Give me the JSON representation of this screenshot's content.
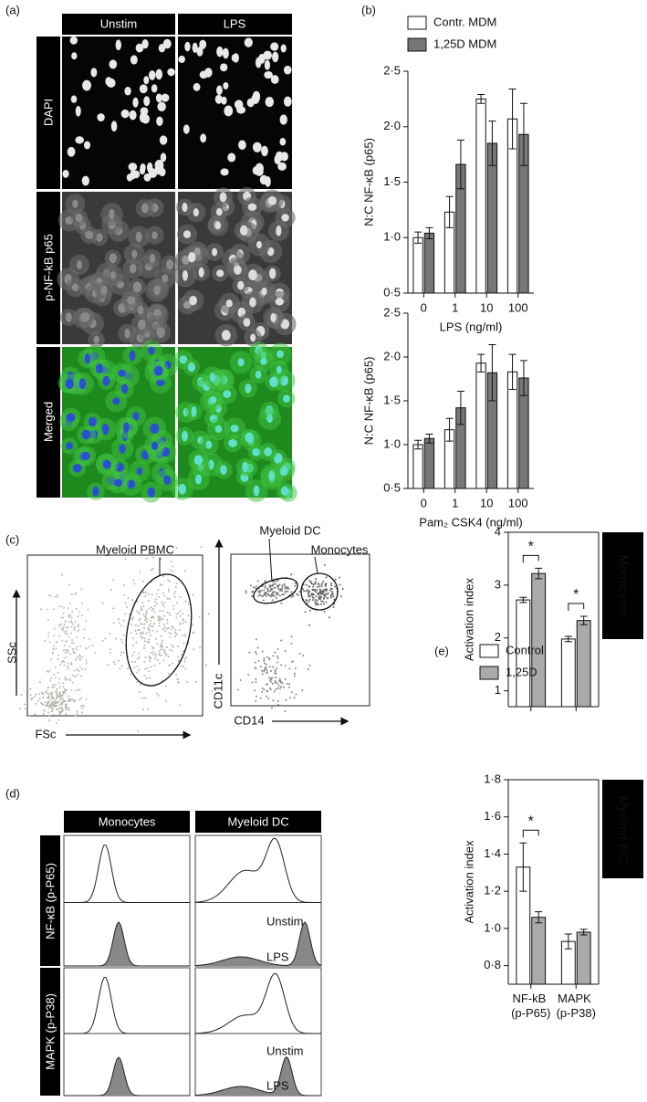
{
  "chart_data": [
    {
      "type": "bar",
      "xlabel": "LPS (ng/ml)",
      "ylabel": "N:C NF-κB (p65)",
      "categories": [
        "0",
        "1",
        "10",
        "100"
      ],
      "series": [
        {
          "name": "Contr. MDM",
          "color": "#ffffff",
          "values": [
            1.0,
            1.23,
            2.25,
            2.07
          ],
          "errors": [
            0.05,
            0.14,
            0.04,
            0.27
          ]
        },
        {
          "name": "1,25D MDM",
          "color": "#777777",
          "values": [
            1.04,
            1.66,
            1.85,
            1.93
          ],
          "errors": [
            0.05,
            0.22,
            0.2,
            0.28
          ]
        }
      ],
      "ylim": [
        0.5,
        2.5
      ],
      "yticks": [
        {
          "value": 0.5,
          "label": "0·5"
        },
        {
          "value": 1.0,
          "label": "1·0"
        },
        {
          "value": 1.5,
          "label": "1·5"
        },
        {
          "value": 2.0,
          "label": "2·0"
        },
        {
          "value": 2.5,
          "label": "2·5"
        }
      ]
    },
    {
      "type": "bar",
      "xlabel": "Pam₂ CSK4 (ng/ml)",
      "ylabel": "N:C NF-κB (p65)",
      "categories": [
        "0",
        "1",
        "10",
        "100"
      ],
      "series": [
        {
          "color": "#ffffff",
          "values": [
            1.0,
            1.17,
            1.93,
            1.83
          ],
          "errors": [
            0.05,
            0.13,
            0.1,
            0.2
          ]
        },
        {
          "color": "#777777",
          "values": [
            1.07,
            1.42,
            1.82,
            1.76
          ],
          "errors": [
            0.05,
            0.19,
            0.32,
            0.2
          ]
        }
      ],
      "ylim": [
        0.5,
        2.5
      ],
      "yticks": [
        {
          "value": 0.5,
          "label": "0·5"
        },
        {
          "value": 1.0,
          "label": "1·0"
        },
        {
          "value": 1.5,
          "label": "1·5"
        },
        {
          "value": 2.0,
          "label": "2·0"
        },
        {
          "value": 2.5,
          "label": "2·5"
        }
      ]
    },
    {
      "type": "bar",
      "ylabel": "Activation index",
      "side_label": "Monocytes",
      "categories": [
        null,
        null
      ],
      "series": [
        {
          "name": "Control",
          "color": "#ffffff",
          "values": [
            2.72,
            1.98
          ],
          "errors": [
            0.05,
            0.05
          ]
        },
        {
          "name": "1,25D",
          "color": "#aaaaaa",
          "values": [
            3.22,
            2.33
          ],
          "errors": [
            0.1,
            0.08
          ]
        }
      ],
      "annotations": [
        "*",
        "*"
      ],
      "ylim": [
        0.7,
        4
      ],
      "yticks": [
        1,
        2,
        3,
        4
      ]
    },
    {
      "type": "bar",
      "ylabel": "Activation index",
      "side_label": "Myeloid DC",
      "categories": [
        "NF-kB (p-P65)",
        "MAPK (p-P38)"
      ],
      "series": [
        {
          "color": "#ffffff",
          "values": [
            1.33,
            0.93
          ],
          "errors": [
            0.13,
            0.04
          ]
        },
        {
          "color": "#aaaaaa",
          "values": [
            1.06,
            0.98
          ],
          "errors": [
            0.03,
            0.015
          ]
        }
      ],
      "annotations": [
        "*"
      ],
      "ylim": [
        0.7,
        1.8
      ],
      "yticks": [
        {
          "value": 0.8,
          "label": "0·8"
        },
        {
          "value": 1.0,
          "label": "1·0"
        },
        {
          "value": 1.2,
          "label": "1·2"
        },
        {
          "value": 1.4,
          "label": "1·4"
        },
        {
          "value": 1.6,
          "label": "1·6"
        },
        {
          "value": 1.8,
          "label": "1·8"
        }
      ]
    }
  ],
  "panels": {
    "letters": [
      "(a)",
      "(b)",
      "(c)",
      "(d)",
      "(e)"
    ],
    "a": {
      "columns": [
        "Unstim",
        "LPS"
      ],
      "rows": [
        "DAPI",
        "p-NF-kB p65",
        "Merged"
      ]
    },
    "c": {
      "left": {
        "y_axis": "SSc",
        "x_axis": "FSc",
        "gate": "Myeloid PBMC"
      },
      "right": {
        "y_axis": "CD11c",
        "x_axis": "CD14",
        "gates": [
          "Myeloid DC",
          "Monocytes"
        ]
      }
    },
    "d": {
      "columns": [
        "Monocytes",
        "Myeloid DC"
      ],
      "rows": [
        "NF-κB (p-P65)",
        "MAPK (p-P38)"
      ],
      "hist_labels": [
        "Unstim",
        "LPS",
        "Unstim",
        "LPS"
      ]
    }
  }
}
